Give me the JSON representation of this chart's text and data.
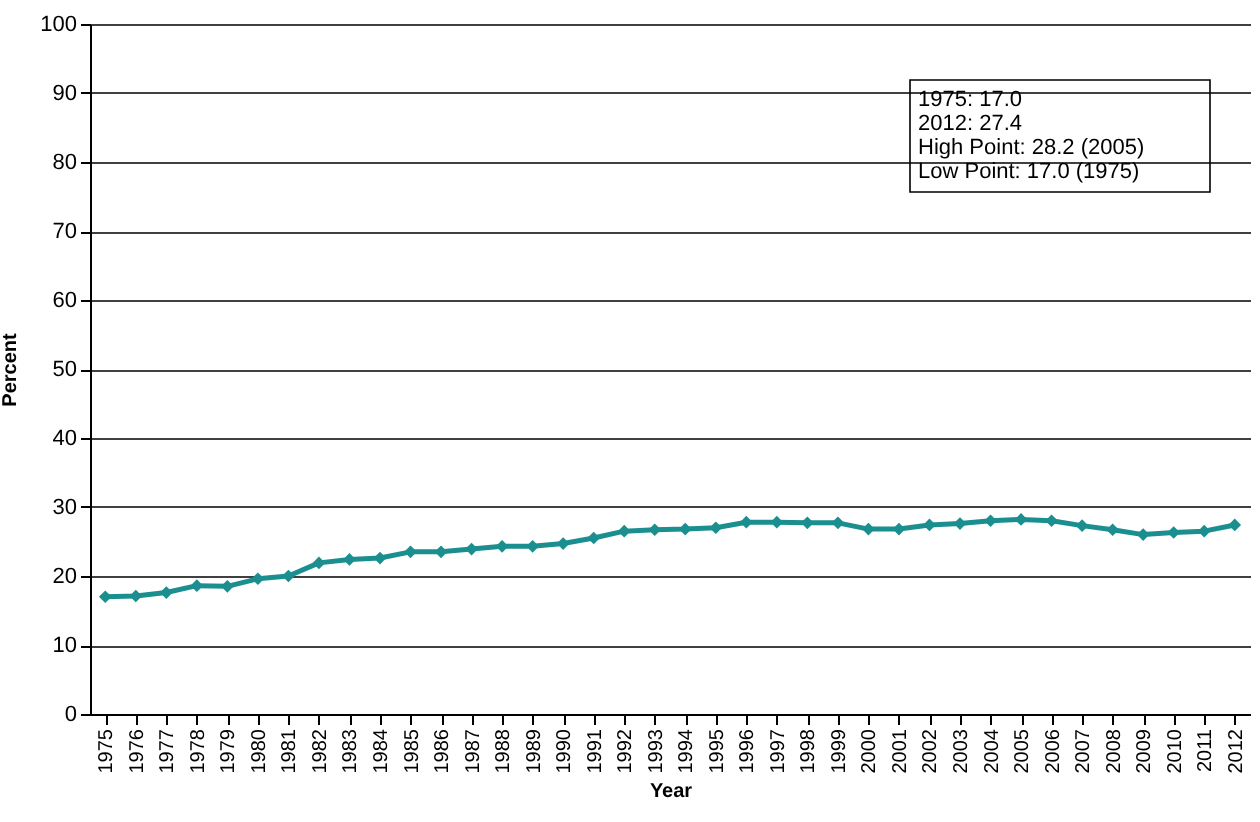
{
  "chart_data": {
    "type": "line",
    "xlabel": "Year",
    "ylabel": "Percent",
    "categories": [
      "1975",
      "1976",
      "1977",
      "1978",
      "1979",
      "1980",
      "1981",
      "1982",
      "1983",
      "1984",
      "1985",
      "1986",
      "1987",
      "1988",
      "1989",
      "1990",
      "1991",
      "1992",
      "1993",
      "1994",
      "1995",
      "1996",
      "1997",
      "1998",
      "1999",
      "2000",
      "2001",
      "2002",
      "2003",
      "2004",
      "2005",
      "2006",
      "2007",
      "2008",
      "2009",
      "2010",
      "2011",
      "2012"
    ],
    "series": [
      {
        "color": "#1b8f8f",
        "values": [
          17.0,
          17.1,
          17.6,
          18.6,
          18.5,
          19.6,
          20.0,
          21.9,
          22.4,
          22.6,
          23.5,
          23.5,
          23.9,
          24.3,
          24.3,
          24.7,
          25.5,
          26.5,
          26.7,
          26.8,
          27.0,
          27.8,
          27.8,
          27.7,
          27.7,
          26.8,
          26.8,
          27.4,
          27.6,
          28.0,
          28.2,
          28.0,
          27.3,
          26.7,
          26.0,
          26.3,
          26.5,
          27.4
        ]
      }
    ],
    "ylim": [
      0,
      100
    ],
    "yticks": [
      0,
      10,
      20,
      30,
      40,
      50,
      60,
      70,
      80,
      90,
      100
    ],
    "grid": "y",
    "marker": "diamond",
    "line_style": "solid",
    "annotations": [
      "1975: 17.0",
      "2012: 27.4",
      "High Point: 28.2 (2005)",
      "Low Point: 17.0 (1975)"
    ]
  }
}
